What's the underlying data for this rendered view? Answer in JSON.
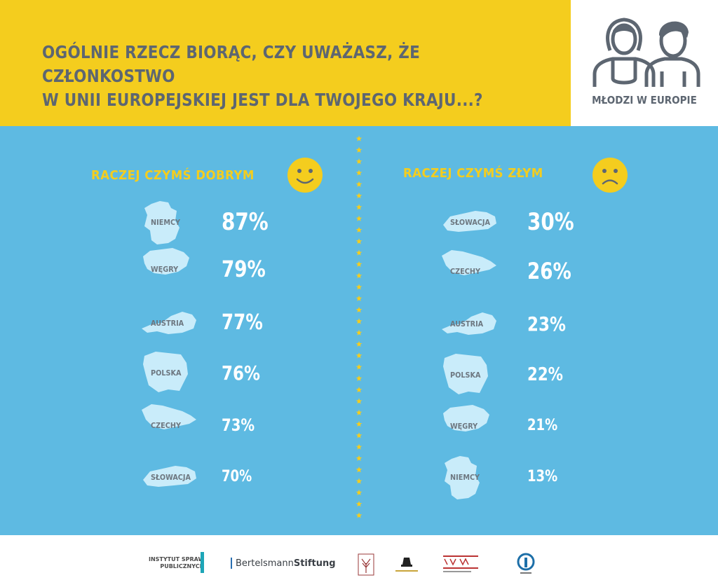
{
  "header": {
    "question_line1": "OGÓLNIE RZECZ BIORĄC, CZY UWAŻASZ, ŻE CZŁONKOSTWO",
    "question_line2": "W UNII EUROPEJSKIEJ JEST DLA TWOJEGO KRAJU...?",
    "brand_label": "MŁODZI W EUROPIE"
  },
  "colors": {
    "yellow": "#f4cd1e",
    "blue": "#5ebae2",
    "grey": "#5d6671",
    "white": "#ffffff"
  },
  "chart_data": [
    {
      "type": "table",
      "title": "RACZEJ CZYMŚ DOBRYM",
      "icon": "smiley-face-icon",
      "categories": [
        "NIEMCY",
        "WĘGRY",
        "AUSTRIA",
        "POLSKA",
        "CZECHY",
        "SŁOWACJA"
      ],
      "values": [
        87,
        79,
        77,
        76,
        73,
        70
      ],
      "labels": [
        "87%",
        "79%",
        "77%",
        "76%",
        "73%",
        "70%"
      ],
      "unit": "%"
    },
    {
      "type": "table",
      "title": "RACZEJ CZYMŚ ZŁYM",
      "icon": "sad-face-icon",
      "categories": [
        "SŁOWACJA",
        "CZECHY",
        "AUSTRIA",
        "POLSKA",
        "WĘGRY",
        "NIEMCY"
      ],
      "values": [
        30,
        26,
        23,
        22,
        21,
        13
      ],
      "labels": [
        "30%",
        "26%",
        "23%",
        "22%",
        "21%",
        "13%"
      ],
      "unit": "%"
    }
  ],
  "footer": {
    "isp_line1": "INSTYTUT SPRAW",
    "isp_line2": "PUBLICZNYCH",
    "bertelsmann_a": "Bertelsmann",
    "bertelsmann_b": "Stiftung",
    "logos": [
      "institute-logo-icon",
      "political-capital-logo-icon",
      "iwm-logo-icon",
      "round-institute-logo-icon"
    ]
  }
}
